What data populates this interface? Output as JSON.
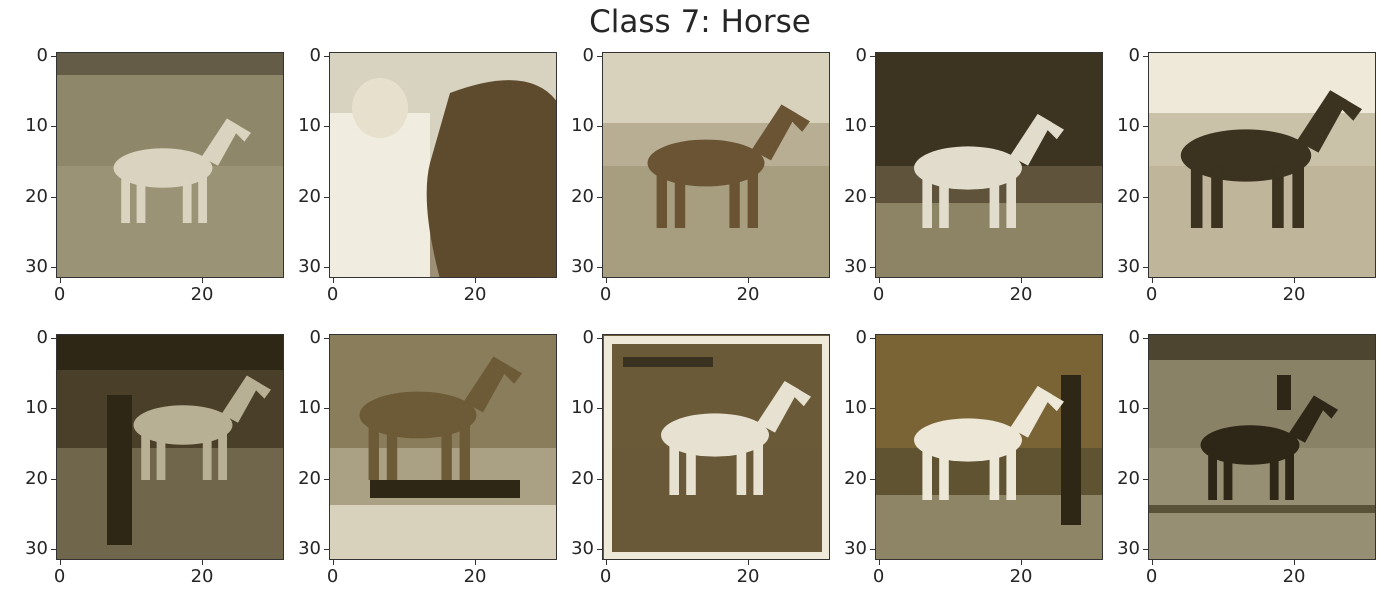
{
  "figure": {
    "title": "Class 7: Horse",
    "tint_dark": "#2a2414",
    "tint_mid": "#7d6a45",
    "tint_light": "#e9e4d2"
  },
  "axes": {
    "yticks": [
      "0",
      "10",
      "20",
      "30"
    ],
    "xticks": [
      "0",
      "20"
    ]
  },
  "panels": [
    {
      "id": 1,
      "content": "light horse on grass",
      "scene": "a"
    },
    {
      "id": 2,
      "content": "person beside horse head",
      "scene": "b"
    },
    {
      "id": 3,
      "content": "brown horse in profile",
      "scene": "c"
    },
    {
      "id": 4,
      "content": "white horse in dark stable",
      "scene": "d"
    },
    {
      "id": 5,
      "content": "dark horse on pale background",
      "scene": "e"
    },
    {
      "id": 6,
      "content": "person with horse at fence",
      "scene": "f"
    },
    {
      "id": 7,
      "content": "horse jumping over obstacle",
      "scene": "g"
    },
    {
      "id": 8,
      "content": "white horse in framed field",
      "scene": "h"
    },
    {
      "id": 9,
      "content": "white horse with handler",
      "scene": "i"
    },
    {
      "id": 10,
      "content": "dark horse and rider",
      "scene": "j"
    }
  ]
}
